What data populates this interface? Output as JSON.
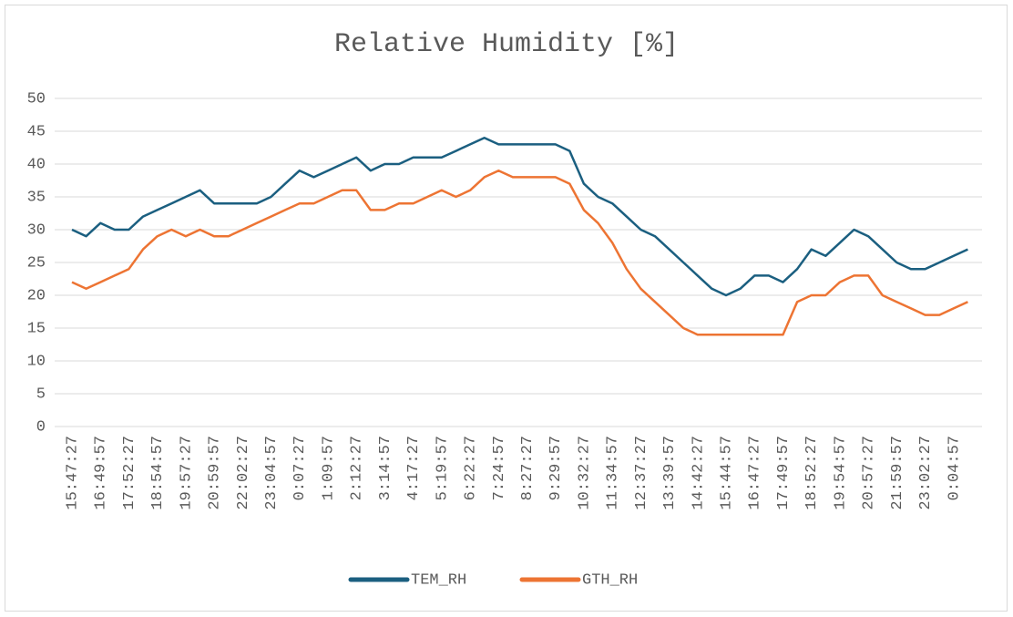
{
  "chart_data": {
    "type": "line",
    "title": "Relative Humidity [%]",
    "categories": [
      "15:47:27",
      null,
      "16:49:57",
      null,
      "17:52:27",
      null,
      "18:54:57",
      null,
      "19:57:27",
      null,
      "20:59:57",
      null,
      "22:02:27",
      null,
      "23:04:57",
      null,
      "0:07:27",
      null,
      "1:09:57",
      null,
      "2:12:27",
      null,
      "3:14:57",
      null,
      "4:17:27",
      null,
      "5:19:57",
      null,
      "6:22:27",
      null,
      "7:24:57",
      null,
      "8:27:27",
      null,
      "9:29:57",
      null,
      "10:32:27",
      null,
      "11:34:57",
      null,
      "12:37:27",
      null,
      "13:39:57",
      null,
      "14:42:27",
      null,
      "15:44:57",
      null,
      "16:47:27",
      null,
      "17:49:57",
      null,
      "18:52:27",
      null,
      "19:54:57",
      null,
      "20:57:27",
      null,
      "21:59:57",
      null,
      "23:02:27",
      null,
      "0:04:57",
      null
    ],
    "series": [
      {
        "name": "TEM_RH",
        "color": "#1b5f80",
        "values": [
          30,
          29,
          31,
          30,
          30,
          32,
          33,
          34,
          35,
          36,
          34,
          34,
          34,
          34,
          35,
          37,
          39,
          38,
          39,
          40,
          41,
          39,
          40,
          40,
          41,
          41,
          41,
          42,
          43,
          44,
          43,
          43,
          43,
          43,
          43,
          42,
          37,
          35,
          34,
          32,
          30,
          29,
          27,
          25,
          23,
          21,
          20,
          21,
          23,
          23,
          22,
          24,
          27,
          26,
          28,
          30,
          29,
          27,
          25,
          24,
          24,
          25,
          26,
          27
        ]
      },
      {
        "name": "GTH_RH",
        "color": "#ed7433",
        "values": [
          22,
          21,
          22,
          23,
          24,
          27,
          29,
          30,
          29,
          30,
          29,
          29,
          30,
          31,
          32,
          33,
          34,
          34,
          35,
          36,
          36,
          33,
          33,
          34,
          34,
          35,
          36,
          35,
          36,
          38,
          39,
          38,
          38,
          38,
          38,
          37,
          33,
          31,
          28,
          24,
          21,
          19,
          17,
          15,
          14,
          14,
          14,
          14,
          14,
          14,
          14,
          19,
          20,
          20,
          22,
          23,
          23,
          20,
          19,
          18,
          17,
          17,
          18,
          19
        ]
      }
    ],
    "ylim": [
      0,
      50
    ],
    "yticks": [
      0,
      5,
      10,
      15,
      20,
      25,
      30,
      35,
      40,
      45,
      50
    ],
    "grid": true,
    "legend": "bottom"
  }
}
